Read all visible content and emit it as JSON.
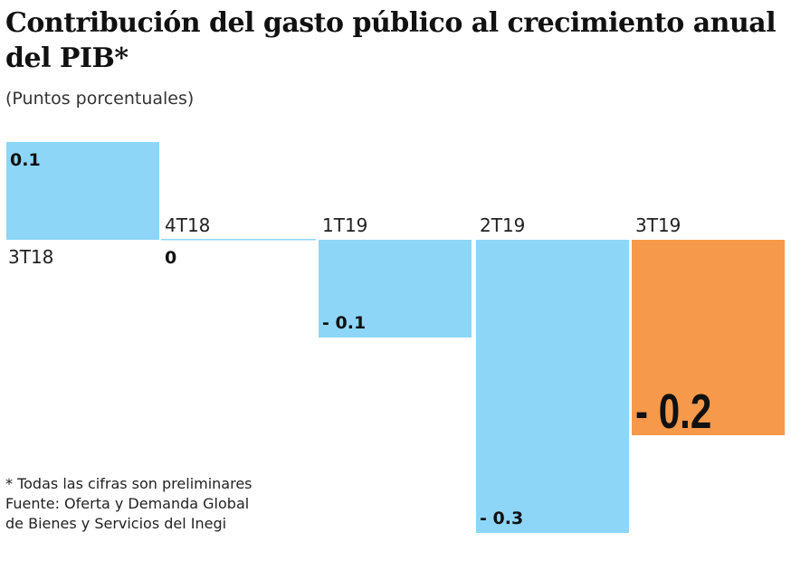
{
  "chart_data": {
    "type": "bar",
    "title": "Contribución del gasto público al crecimiento anual del PIB*",
    "subtitle": "(Puntos porcentuales)",
    "categories": [
      "3T18",
      "4T18",
      "1T19",
      "2T19",
      "3T19"
    ],
    "values": [
      0.1,
      0,
      -0.1,
      -0.3,
      -0.2
    ],
    "value_labels": [
      "0.1",
      "0",
      "- 0.1",
      "- 0.3",
      "- 0.2"
    ],
    "colors": [
      "#8dd6f7",
      "#8dd6f7",
      "#8dd6f7",
      "#8dd6f7",
      "#f7994a"
    ],
    "highlight_index": 4,
    "ylim": [
      -0.3,
      0.1
    ],
    "grid": false,
    "xlabel": "",
    "ylabel": ""
  },
  "notes": {
    "line1": "* Todas las cifras son preliminares",
    "line2": "Fuente: Oferta y Demanda Global",
    "line3": "de Bienes y Servicios del Inegi"
  }
}
